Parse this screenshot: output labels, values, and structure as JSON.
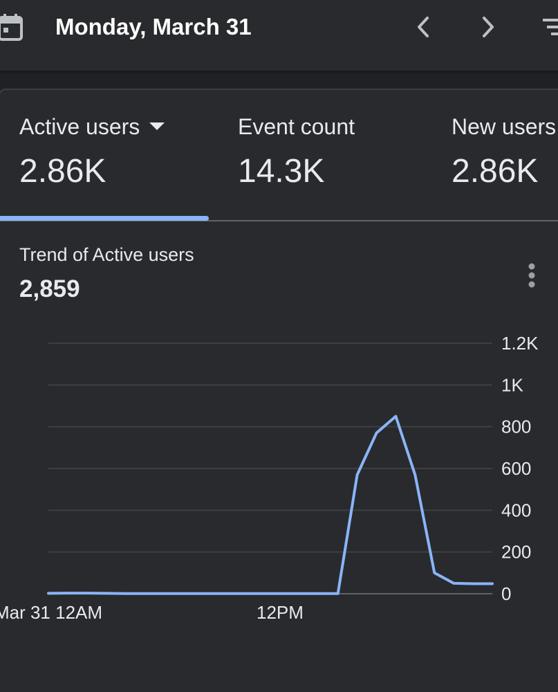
{
  "header": {
    "date_title": "Monday, March 31",
    "icons": {
      "calendar": "calendar-icon",
      "prev": "chevron-left-icon",
      "next": "chevron-right-icon",
      "filter": "filter-icon"
    }
  },
  "metrics": [
    {
      "label": "Active users",
      "value": "2.86K",
      "selected": true
    },
    {
      "label": "Event count",
      "value": "14.3K",
      "selected": false
    },
    {
      "label": "New users",
      "value": "2.86K",
      "selected": false
    }
  ],
  "trend": {
    "title": "Trend of Active users",
    "total": "2,859"
  },
  "colors": {
    "accent": "#8ab4f8",
    "background": "#202124",
    "surface": "#292a2d",
    "gridline": "#3c4043",
    "text": "#e8eaed"
  },
  "chart_data": {
    "type": "line",
    "title": "Trend of Active users",
    "xlabel": "",
    "ylabel": "",
    "ylim": [
      0,
      1200
    ],
    "yticks": [
      0,
      200,
      400,
      600,
      800,
      1000,
      1200
    ],
    "ytick_labels": [
      "0",
      "200",
      "400",
      "600",
      "800",
      "1K",
      "1.2K"
    ],
    "x_tick_labels": [
      {
        "hour": 0,
        "label": "Mar 31 12AM"
      },
      {
        "hour": 12,
        "label": "12PM"
      }
    ],
    "grid": true,
    "series": [
      {
        "color": "#8ab4f8",
        "x": [
          0,
          1,
          2,
          3,
          4,
          5,
          6,
          7,
          8,
          9,
          10,
          11,
          12,
          13,
          14,
          15,
          16,
          17,
          18,
          19,
          20,
          21,
          22,
          23
        ],
        "y": [
          2,
          3,
          3,
          2,
          1,
          1,
          1,
          1,
          1,
          1,
          1,
          1,
          1,
          1,
          1,
          1,
          570,
          770,
          850,
          570,
          100,
          50,
          48,
          48
        ]
      }
    ]
  }
}
